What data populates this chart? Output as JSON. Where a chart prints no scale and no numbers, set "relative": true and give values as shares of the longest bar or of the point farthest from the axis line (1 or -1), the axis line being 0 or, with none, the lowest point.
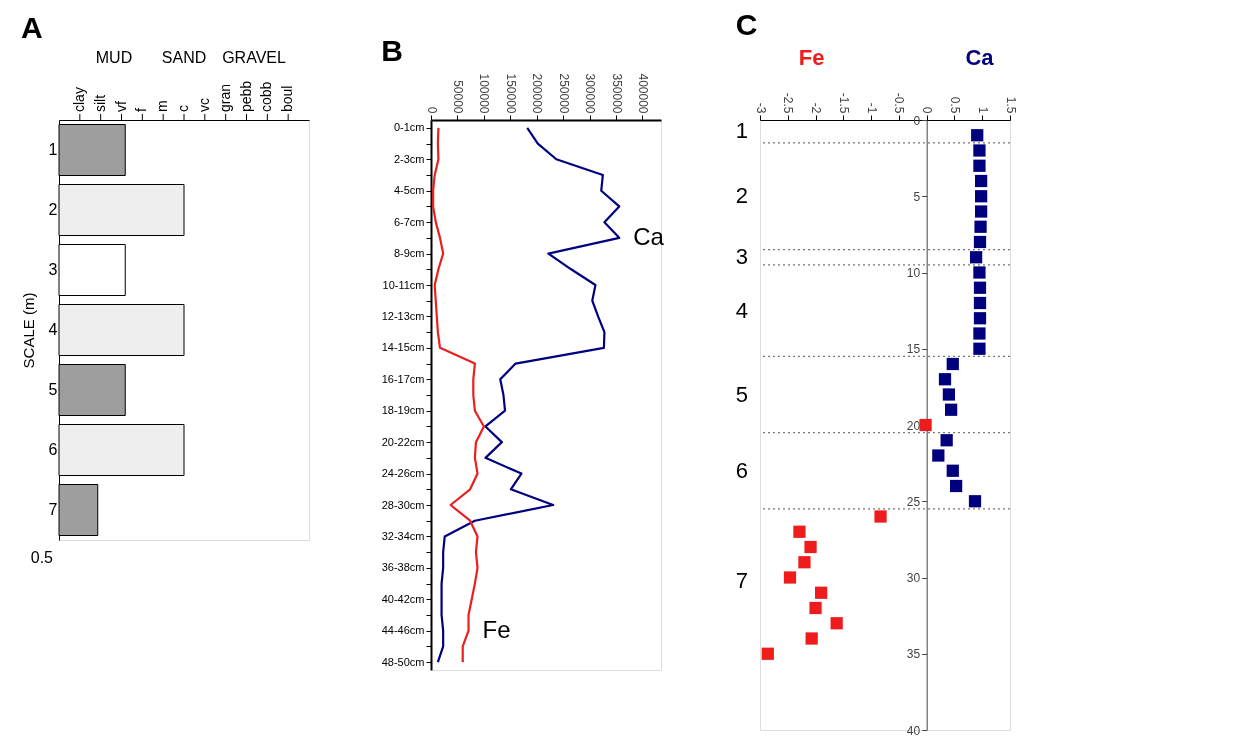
{
  "chart_data": [
    {
      "type": "bar",
      "title": "A",
      "orientation": "horizontal",
      "ylabel": "SCALE (m)",
      "categories": [
        "1",
        "2",
        "3",
        "4",
        "5",
        "6",
        "7"
      ],
      "values": [
        0.53,
        1,
        0.53,
        1,
        0.53,
        1,
        0.31
      ],
      "relative": true,
      "colors": [
        "#9e9e9e",
        "#eeeeee",
        "#ffffff",
        "#eeeeee",
        "#9e9e9e",
        "#eeeeee",
        "#9e9e9e"
      ],
      "annotations": [
        "clay",
        "silt",
        "vf",
        "f",
        "m",
        "c",
        "vc",
        "gran",
        "pebb",
        "cobb",
        "boul",
        "MUD",
        "SAND",
        "GRAVEL",
        "0.5"
      ],
      "grid": false,
      "legend": false
    },
    {
      "type": "line",
      "title": "B",
      "orientation": "horizontal",
      "categories": [
        "0-1cm",
        null,
        "2-3cm",
        null,
        "4-5cm",
        null,
        "6-7cm",
        null,
        "8-9cm",
        null,
        "10-11cm",
        null,
        "12-13cm",
        null,
        "14-15cm",
        null,
        "16-17cm",
        null,
        "18-19cm",
        null,
        "20-22cm",
        null,
        "24-26cm",
        null,
        "28-30cm",
        null,
        "32-34cm",
        null,
        "36-38cm",
        null,
        "40-42cm",
        null,
        "44-46cm",
        null,
        "48-50cm"
      ],
      "series": [
        {
          "name": "Ca",
          "color": "#00007f",
          "values": [
            182000,
            202000,
            237000,
            325000,
            322000,
            356000,
            328000,
            356000,
            222000,
            265000,
            311000,
            305000,
            316000,
            328000,
            327000,
            160000,
            131000,
            137000,
            140000,
            103000,
            134000,
            103000,
            171000,
            151000,
            231000,
            83000,
            26000,
            23000,
            23000,
            20000,
            20000,
            20000,
            23000,
            23000,
            13000
          ]
        },
        {
          "name": "Fe",
          "color": "#e8201e",
          "values": [
            14000,
            13000,
            14000,
            7000,
            4000,
            4000,
            9000,
            17000,
            23000,
            14000,
            7000,
            9000,
            11000,
            13000,
            17000,
            83000,
            80000,
            80000,
            83000,
            100000,
            85000,
            83000,
            88000,
            74000,
            37000,
            74000,
            88000,
            85000,
            88000,
            83000,
            77000,
            71000,
            71000,
            60000,
            60000
          ]
        }
      ],
      "xlim": [
        0,
        435000
      ],
      "xticks": [
        0,
        50000,
        100000,
        150000,
        200000,
        250000,
        300000,
        350000,
        400000
      ],
      "grid": false,
      "legend": false,
      "marker": "none",
      "line_style": "solid"
    },
    {
      "type": "scatter",
      "title": "C",
      "marker": "square",
      "series": [
        {
          "name": "Fe",
          "color": "#ee1c1c",
          "x": [
            -0.02,
            -0.83,
            -2.29,
            -2.09,
            -2.2,
            -2.46,
            -1.9,
            -2.0,
            -1.62,
            -2.07,
            -2.86
          ],
          "values": [
            20,
            26,
            27,
            28,
            29,
            30,
            31,
            32,
            33,
            34,
            35
          ]
        },
        {
          "name": "Ca",
          "color": "#00007f",
          "x": [
            0.91,
            0.95,
            0.95,
            0.98,
            0.98,
            0.98,
            0.97,
            0.96,
            0.89,
            0.95,
            0.96,
            0.96,
            0.96,
            0.95,
            0.95,
            0.47,
            0.33,
            0.4,
            0.44,
            0.36,
            0.21,
            0.47,
            0.53,
            0.87
          ],
          "values": [
            1,
            2,
            3,
            4,
            5,
            6,
            7,
            8,
            9,
            10,
            11,
            12,
            13,
            14,
            15,
            16,
            17,
            18,
            19,
            21,
            22,
            23,
            24,
            25
          ]
        }
      ],
      "xlim": [
        -3,
        1.5
      ],
      "xticks": [
        -3,
        -2.5,
        -2,
        -1.5,
        -1,
        -0.5,
        0,
        0.5,
        1,
        1.5
      ],
      "ylim": [
        40,
        0
      ],
      "yticks": [
        0,
        5,
        10,
        15,
        20,
        25,
        30,
        35,
        40
      ],
      "ref_lines": [
        {
          "axis": "y",
          "value": 1.5,
          "color": "#777777",
          "line_style": "dotted"
        },
        {
          "axis": "y",
          "value": 8.5,
          "color": "#777777",
          "line_style": "dotted"
        },
        {
          "axis": "y",
          "value": 9.5,
          "color": "#777777",
          "line_style": "dotted"
        },
        {
          "axis": "y",
          "value": 15.5,
          "color": "#777777",
          "line_style": "dotted"
        },
        {
          "axis": "y",
          "value": 20.5,
          "color": "#777777",
          "line_style": "dotted"
        },
        {
          "axis": "y",
          "value": 25.5,
          "color": "#777777",
          "line_style": "dotted"
        }
      ],
      "annotations": [
        "1",
        "2",
        "3",
        "4",
        "5",
        "6",
        "7"
      ],
      "grid": false,
      "legend": false
    }
  ]
}
